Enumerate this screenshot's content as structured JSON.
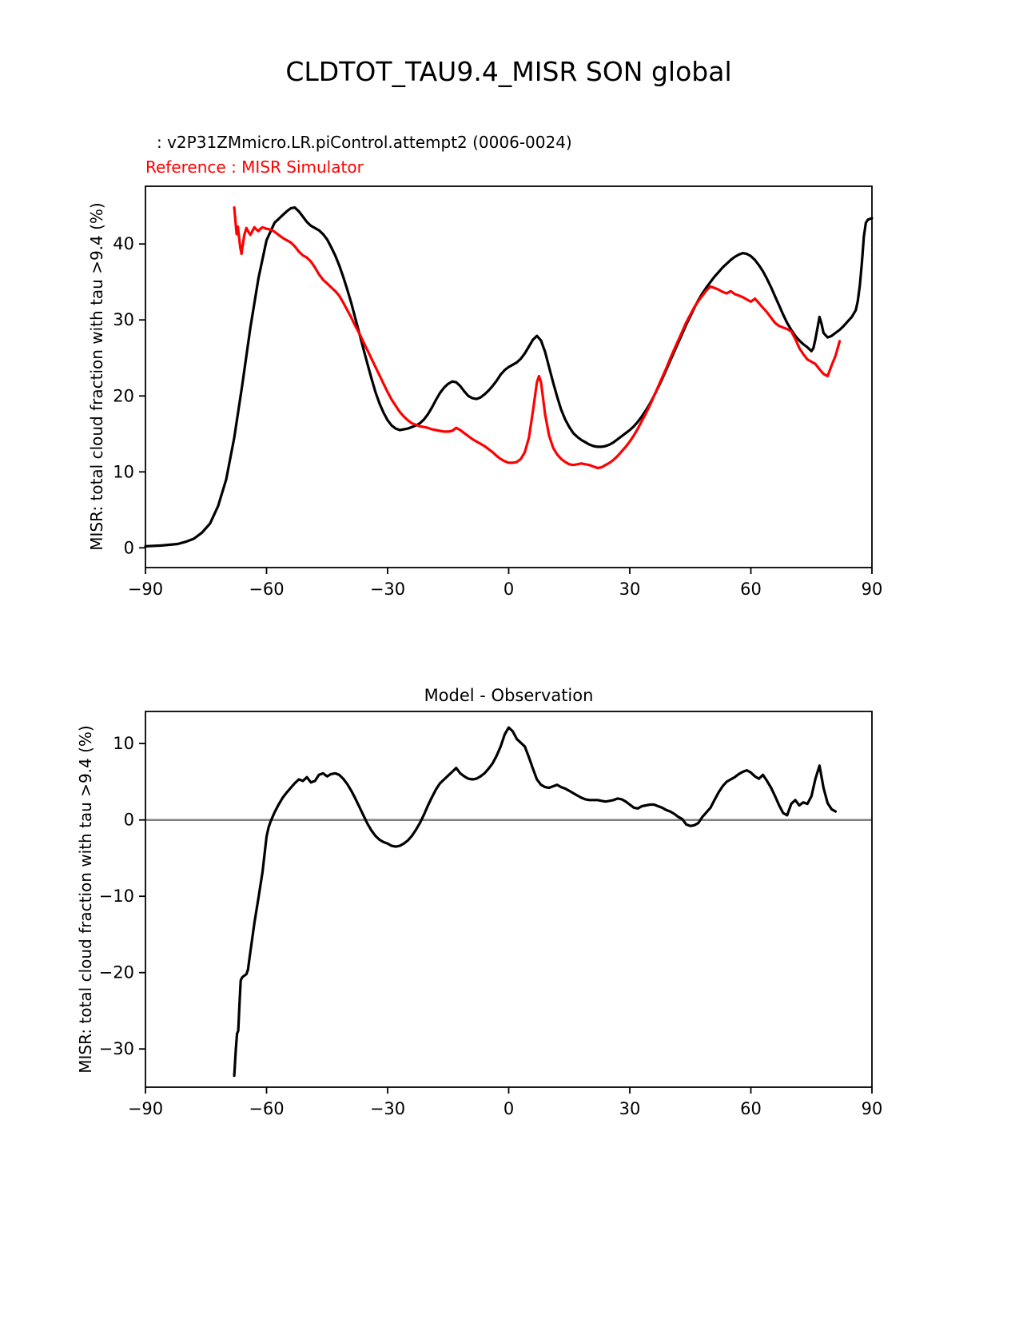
{
  "header": {
    "title": "CLDTOT_TAU9.4_MISR SON global",
    "model_line": ": v2P31ZMmicro.LR.piControl.attempt2 (0006-0024)",
    "reference_line": "Reference : MISR Simulator",
    "reference_color": "#ff0000"
  },
  "chart_data": [
    {
      "type": "line",
      "title": "",
      "xlabel": "",
      "ylabel": "MISR: total cloud fraction with tau >9.4 (%)",
      "xlim": [
        -90,
        90
      ],
      "ylim": [
        -2.6,
        47.6
      ],
      "xticks": [
        -90,
        -60,
        -30,
        0,
        30,
        60,
        90
      ],
      "yticks": [
        0,
        10,
        20,
        30,
        40
      ],
      "grid": false,
      "legend": false,
      "series": [
        {
          "name": "model (v2P31ZMmicro.LR.piControl.attempt2)",
          "color": "#000000",
          "width": 3.2,
          "x": [
            -90,
            -86,
            -82,
            -80,
            -78,
            -76,
            -74,
            -72,
            -70,
            -68,
            -66,
            -64,
            -62,
            -60,
            -58,
            -57,
            -56,
            -55,
            -54,
            -53,
            -52,
            -51,
            -50,
            -49,
            -48,
            -47,
            -46,
            -45,
            -44,
            -43,
            -42,
            -41,
            -40,
            -39,
            -38,
            -37,
            -36,
            -35,
            -34,
            -33,
            -32,
            -31,
            -30,
            -29,
            -28,
            -27,
            -26,
            -25,
            -24,
            -23,
            -22,
            -21,
            -20,
            -19,
            -18,
            -17,
            -16,
            -15,
            -14,
            -13,
            -12,
            -11,
            -10,
            -9,
            -8,
            -7,
            -6,
            -5,
            -4,
            -3,
            -2,
            -1,
            0,
            1,
            2,
            3,
            4,
            5,
            6,
            7,
            8,
            9,
            10,
            11,
            12,
            13,
            14,
            15,
            16,
            17,
            18,
            19,
            20,
            21,
            22,
            23,
            24,
            25,
            26,
            27,
            28,
            29,
            30,
            31,
            32,
            33,
            34,
            35,
            36,
            37,
            38,
            39,
            40,
            41,
            42,
            43,
            44,
            45,
            46,
            47,
            48,
            49,
            50,
            51,
            52,
            53,
            54,
            55,
            56,
            57,
            58,
            59,
            60,
            61,
            62,
            63,
            64,
            65,
            66,
            67,
            68,
            69,
            70,
            71,
            72,
            73,
            74,
            75,
            75.5,
            76,
            77,
            77.5,
            78,
            79,
            80,
            81,
            82,
            83,
            84,
            85,
            86,
            86.5,
            87,
            87.5,
            88,
            88.5,
            89,
            90
          ],
          "y": [
            0.2,
            0.3,
            0.5,
            0.8,
            1.2,
            2,
            3.2,
            5.5,
            9,
            14.5,
            21.5,
            29,
            35.5,
            40.5,
            42.8,
            43.3,
            43.8,
            44.3,
            44.7,
            44.8,
            44.3,
            43.6,
            42.9,
            42.4,
            42.1,
            41.8,
            41.3,
            40.6,
            39.6,
            38.5,
            37.2,
            35.7,
            34,
            32.2,
            30.2,
            28.2,
            26.2,
            24.2,
            22.3,
            20.5,
            19,
            17.8,
            16.8,
            16.1,
            15.7,
            15.5,
            15.6,
            15.7,
            15.9,
            16.1,
            16.4,
            16.9,
            17.6,
            18.5,
            19.5,
            20.4,
            21.1,
            21.6,
            21.9,
            21.8,
            21.3,
            20.6,
            20,
            19.7,
            19.6,
            19.8,
            20.2,
            20.7,
            21.3,
            22,
            22.8,
            23.4,
            23.8,
            24.1,
            24.4,
            24.9,
            25.6,
            26.5,
            27.4,
            27.9,
            27.3,
            25.8,
            23.8,
            21.8,
            19.9,
            18.2,
            16.9,
            15.9,
            15.1,
            14.6,
            14.2,
            13.9,
            13.6,
            13.4,
            13.3,
            13.3,
            13.4,
            13.6,
            13.9,
            14.3,
            14.7,
            15.1,
            15.5,
            16,
            16.6,
            17.3,
            18.1,
            19,
            20,
            21.1,
            22.2,
            23.4,
            24.6,
            25.8,
            27,
            28.2,
            29.4,
            30.5,
            31.6,
            32.6,
            33.5,
            34.3,
            35,
            35.7,
            36.3,
            36.9,
            37.4,
            37.9,
            38.3,
            38.6,
            38.8,
            38.7,
            38.4,
            37.9,
            37.2,
            36.4,
            35.4,
            34.3,
            33.1,
            31.9,
            30.7,
            29.6,
            28.7,
            27.9,
            27.3,
            26.8,
            26.4,
            25.9,
            26.3,
            27.5,
            30.4,
            29.5,
            28.3,
            27.7,
            27.9,
            28.3,
            28.7,
            29.2,
            29.8,
            30.4,
            31.3,
            32.5,
            34.5,
            37.5,
            41,
            42.8,
            43.2,
            43.4
          ]
        },
        {
          "name": "Reference : MISR Simulator",
          "color": "#ff0000",
          "width": 3.2,
          "x": [
            -68,
            -67.7,
            -67.4,
            -67.1,
            -66.8,
            -66.5,
            -66.2,
            -66,
            -65.5,
            -65,
            -64.5,
            -64,
            -63.5,
            -63,
            -62.5,
            -62,
            -61.5,
            -61,
            -60.5,
            -60,
            -59,
            -58,
            -57,
            -56,
            -55,
            -54,
            -53,
            -52,
            -51,
            -50,
            -49,
            -48,
            -47,
            -46,
            -45,
            -44,
            -43,
            -42,
            -41,
            -40,
            -39,
            -38,
            -37,
            -36,
            -35,
            -34,
            -33,
            -32,
            -31,
            -30,
            -29,
            -28,
            -27,
            -26,
            -25,
            -24,
            -23,
            -22,
            -21,
            -20,
            -19,
            -18,
            -17,
            -16,
            -15,
            -14,
            -13,
            -12,
            -11,
            -10,
            -9,
            -8,
            -7,
            -6,
            -5,
            -4,
            -3,
            -2,
            -1,
            0,
            1,
            2,
            3,
            4,
            5,
            6,
            7,
            7.5,
            8,
            8.5,
            9,
            10,
            11,
            12,
            13,
            14,
            15,
            16,
            17,
            18,
            19,
            20,
            21,
            22,
            23,
            24,
            25,
            26,
            27,
            28,
            29,
            30,
            31,
            32,
            33,
            34,
            35,
            36,
            37,
            38,
            39,
            40,
            41,
            42,
            43,
            44,
            45,
            46,
            47,
            48,
            49,
            50,
            51,
            52,
            53,
            54,
            55,
            56,
            57,
            58,
            59,
            60,
            61,
            62,
            63,
            64,
            65,
            66,
            67,
            68,
            69,
            70,
            71,
            72,
            73,
            74,
            75,
            76,
            77,
            78,
            79,
            80,
            81,
            82
          ],
          "y": [
            44.8,
            43,
            41.3,
            42.3,
            40.8,
            39.5,
            38.7,
            39.5,
            41.2,
            42.1,
            41.6,
            41.2,
            41.7,
            42.2,
            41.9,
            41.7,
            42,
            42.2,
            42.1,
            42,
            41.9,
            41.6,
            41.2,
            40.8,
            40.5,
            40.2,
            39.7,
            39,
            38.5,
            38.2,
            37.7,
            36.9,
            36,
            35.3,
            34.8,
            34.3,
            33.8,
            33.2,
            32.3,
            31.3,
            30.3,
            29.2,
            28.2,
            27.1,
            26,
            24.9,
            23.8,
            22.7,
            21.6,
            20.5,
            19.5,
            18.7,
            17.9,
            17.3,
            16.8,
            16.4,
            16.2,
            16,
            15.9,
            15.8,
            15.6,
            15.5,
            15.4,
            15.3,
            15.3,
            15.4,
            15.8,
            15.5,
            15.1,
            14.7,
            14.3,
            14,
            13.7,
            13.4,
            13,
            12.6,
            12.1,
            11.7,
            11.4,
            11.2,
            11.2,
            11.3,
            11.7,
            12.6,
            14.5,
            18,
            21.8,
            22.6,
            21.8,
            19.8,
            17.6,
            14.8,
            13.2,
            12.3,
            11.7,
            11.3,
            11,
            10.9,
            11,
            11.1,
            11,
            10.9,
            10.7,
            10.5,
            10.6,
            10.9,
            11.2,
            11.6,
            12.1,
            12.7,
            13.3,
            14,
            14.8,
            15.7,
            16.7,
            17.7,
            18.8,
            20,
            21.2,
            22.4,
            23.6,
            24.9,
            26.1,
            27.3,
            28.5,
            29.7,
            30.7,
            31.7,
            32.5,
            33.2,
            33.9,
            34.4,
            34.2,
            34,
            33.7,
            33.5,
            33.8,
            33.4,
            33.2,
            33,
            32.7,
            32.4,
            32.8,
            32.2,
            31.6,
            31,
            30.3,
            29.6,
            29.2,
            29,
            28.8,
            28.5,
            27.5,
            26.3,
            25.5,
            24.8,
            24.5,
            24.2,
            23.5,
            22.9,
            22.6,
            24,
            25.3,
            27.2
          ]
        }
      ]
    },
    {
      "type": "line",
      "title": "Model - Observation",
      "xlabel": "",
      "ylabel": "MISR: total cloud fraction with tau >9.4 (%)",
      "xlim": [
        -90,
        90
      ],
      "ylim": [
        -35,
        14.2
      ],
      "xticks": [
        -90,
        -60,
        -30,
        0,
        30,
        60,
        90
      ],
      "yticks": [
        -30,
        -20,
        -10,
        0,
        10
      ],
      "grid": false,
      "legend": false,
      "zero_line": {
        "color": "#808080",
        "width": 2.5
      },
      "series": [
        {
          "name": "model minus observation",
          "color": "#000000",
          "width": 3.2,
          "x": [
            -68,
            -67.6,
            -67.3,
            -67,
            -66.7,
            -66.4,
            -66,
            -65.5,
            -65,
            -64.6,
            -64.2,
            -63.8,
            -63,
            -62,
            -61,
            -60,
            -59.5,
            -59,
            -58,
            -57,
            -56,
            -55,
            -54,
            -53,
            -52,
            -51,
            -50,
            -49,
            -48,
            -47,
            -46,
            -45,
            -44,
            -43,
            -42,
            -41,
            -40,
            -39,
            -38,
            -37,
            -36,
            -35,
            -34,
            -33,
            -32,
            -31,
            -30,
            -29,
            -28,
            -27,
            -26,
            -25,
            -24,
            -23,
            -22,
            -21,
            -20,
            -19,
            -18,
            -17,
            -16,
            -15,
            -14,
            -13,
            -12,
            -11,
            -10,
            -9,
            -8,
            -7,
            -6,
            -5,
            -4,
            -3,
            -2,
            -1,
            0,
            1,
            2,
            3,
            4,
            5,
            6,
            7,
            8,
            9,
            10,
            11,
            12,
            13,
            14,
            15,
            16,
            17,
            18,
            19,
            20,
            21,
            22,
            23,
            24,
            25,
            26,
            27,
            28,
            29,
            30,
            31,
            32,
            33,
            34,
            35,
            36,
            37,
            38,
            39,
            40,
            41,
            42,
            43,
            44,
            45,
            46,
            47,
            48,
            49,
            50,
            51,
            52,
            53,
            54,
            55,
            56,
            57,
            58,
            59,
            60,
            61,
            62,
            63,
            64,
            65,
            66,
            67,
            68,
            69,
            70,
            71,
            72,
            73,
            74,
            75,
            76,
            77,
            78,
            79,
            80,
            81
          ],
          "y": [
            -33.5,
            -30,
            -28,
            -27.6,
            -24,
            -21,
            -20.6,
            -20.4,
            -20.2,
            -19.6,
            -18,
            -16.5,
            -13.5,
            -10.2,
            -6.8,
            -2.2,
            -1,
            -0.2,
            1,
            2,
            2.9,
            3.6,
            4.2,
            4.8,
            5.3,
            5.1,
            5.6,
            4.9,
            5.1,
            5.9,
            6.1,
            5.7,
            6,
            6.1,
            5.9,
            5.4,
            4.7,
            3.8,
            2.8,
            1.7,
            0.6,
            -0.5,
            -1.4,
            -2.1,
            -2.6,
            -2.9,
            -3.1,
            -3.4,
            -3.5,
            -3.4,
            -3.1,
            -2.7,
            -2.1,
            -1.3,
            -0.4,
            0.7,
            1.9,
            3,
            4,
            4.8,
            5.3,
            5.8,
            6.3,
            6.8,
            6.1,
            5.7,
            5.4,
            5.3,
            5.4,
            5.7,
            6.1,
            6.7,
            7.4,
            8.4,
            9.6,
            11.2,
            12.1,
            11.6,
            10.6,
            10.1,
            9.6,
            8.2,
            6.7,
            5.3,
            4.6,
            4.3,
            4.2,
            4.4,
            4.6,
            4.3,
            4.1,
            3.8,
            3.5,
            3.2,
            2.9,
            2.7,
            2.6,
            2.6,
            2.6,
            2.5,
            2.4,
            2.5,
            2.6,
            2.8,
            2.7,
            2.4,
            2,
            1.6,
            1.5,
            1.8,
            1.9,
            2,
            2,
            1.8,
            1.6,
            1.3,
            1.1,
            0.8,
            0.4,
            0.1,
            -0.6,
            -0.8,
            -0.7,
            -0.4,
            0.4,
            1,
            1.6,
            2.6,
            3.6,
            4.4,
            5,
            5.3,
            5.6,
            6,
            6.3,
            6.5,
            6.2,
            5.7,
            5.4,
            5.9,
            5.1,
            4.2,
            3.1,
            1.9,
            0.9,
            0.6,
            2.1,
            2.6,
            1.9,
            2.3,
            2.1,
            3.1,
            5.4,
            7.1,
            4.2,
            2.2,
            1.4,
            1.1
          ]
        }
      ]
    }
  ]
}
